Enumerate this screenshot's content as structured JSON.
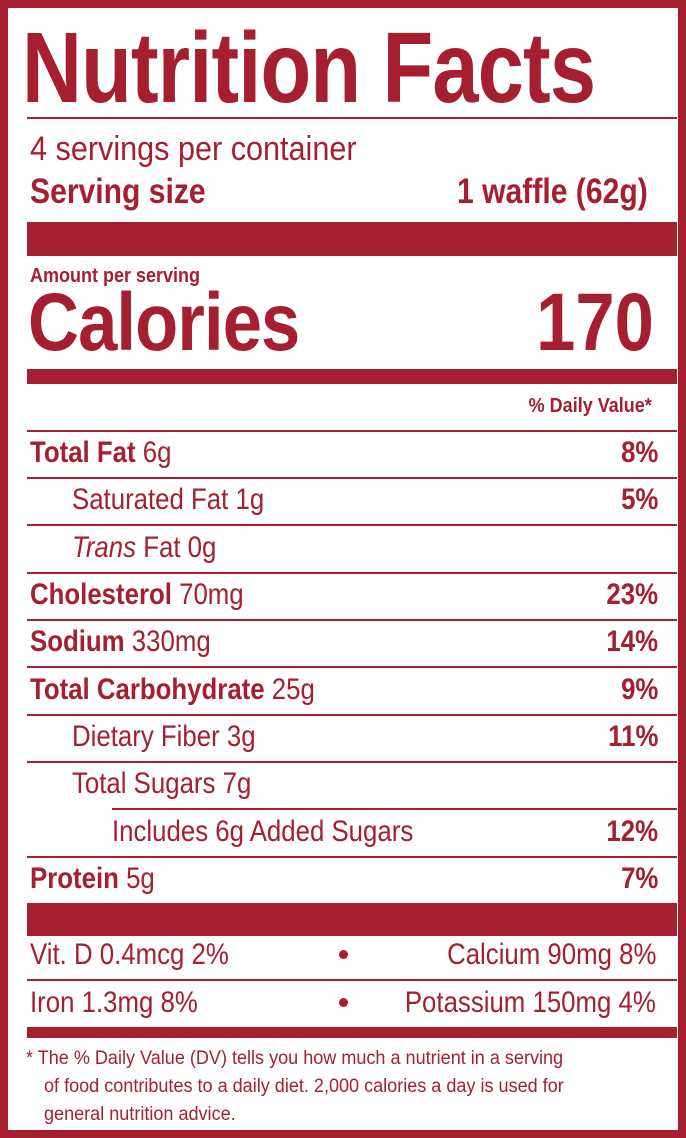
{
  "title": "Nutrition Facts",
  "servings_per_container": "4 servings per container",
  "serving_size": {
    "label": "Serving size",
    "value": "1 waffle (62g)"
  },
  "amount_per_serving": "Amount per serving",
  "calories": {
    "label": "Calories",
    "value": "170"
  },
  "daily_value_header": "% Daily Value*",
  "nutrients": [
    {
      "name": "Total Fat",
      "amount": "6g",
      "dv": "8%"
    },
    {
      "name": "Saturated Fat",
      "amount": "1g",
      "dv": "5%"
    },
    {
      "name_italic": "Trans",
      "name": "Fat",
      "amount": "0g",
      "dv": ""
    },
    {
      "name": "Cholesterol",
      "amount": "70mg",
      "dv": "23%"
    },
    {
      "name": "Sodium",
      "amount": "330mg",
      "dv": "14%"
    },
    {
      "name": "Total Carbohydrate",
      "amount": "25g",
      "dv": "9%"
    },
    {
      "name": "Dietary Fiber",
      "amount": "3g",
      "dv": "11%"
    },
    {
      "name": "Total Sugars",
      "amount": "7g",
      "dv": ""
    },
    {
      "text": "Includes 6g Added Sugars",
      "dv": "12%"
    },
    {
      "name": "Protein",
      "amount": "5g",
      "dv": "7%"
    }
  ],
  "vitamins": [
    {
      "left": "Vit. D 0.4mcg 2%",
      "right": "Calcium 90mg 8%"
    },
    {
      "left": "Iron 1.3mg 8%",
      "right": "Potassium 150mg 4%"
    }
  ],
  "footnote": [
    "* The % Daily Value (DV) tells you how much a nutrient in a serving",
    "of food contributes to a daily diet. 2,000 calories a day is used for",
    "general nutrition advice."
  ],
  "colors": {
    "ink": "#a51f31",
    "background": "#ffffff"
  }
}
